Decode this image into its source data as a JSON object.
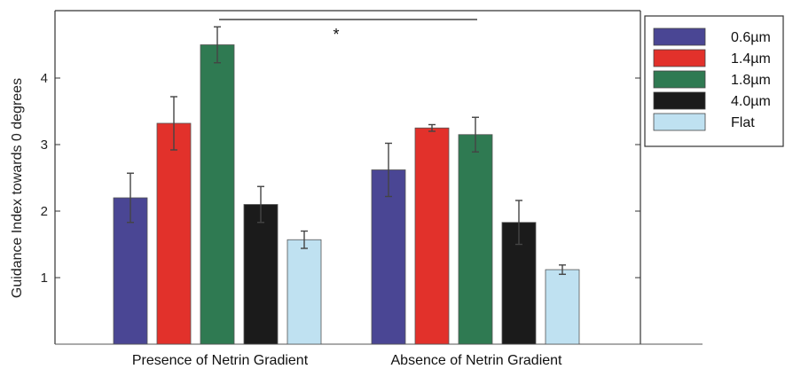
{
  "chart_data": {
    "type": "bar",
    "title": "",
    "xlabel": "",
    "ylabel": "Guidance Index towards 0 degrees",
    "ylim": [
      0,
      5
    ],
    "yticks": [
      1,
      2,
      3,
      4
    ],
    "grid": false,
    "legend_position": "top-right, outside plot",
    "categories": [
      "Presence of Netrin Gradient",
      "Absence of Netrin Gradient"
    ],
    "series": [
      {
        "name": "0.6µm",
        "color": "#4a4694",
        "values": [
          2.2,
          2.62
        ],
        "errors": [
          0.37,
          0.4
        ]
      },
      {
        "name": "1.4µm",
        "color": "#e2312b",
        "values": [
          3.32,
          3.25
        ],
        "errors": [
          0.4,
          0.05
        ]
      },
      {
        "name": "1.8µm",
        "color": "#2f7a52",
        "values": [
          4.5,
          3.15
        ],
        "errors": [
          0.27,
          0.26
        ]
      },
      {
        "name": "4.0µm",
        "color": "#1b1b1b",
        "values": [
          2.1,
          1.83
        ],
        "errors": [
          0.27,
          0.33
        ]
      },
      {
        "name": "Flat",
        "color": "#bfe1f1",
        "values": [
          1.57,
          1.12
        ],
        "errors": [
          0.13,
          0.07
        ]
      }
    ],
    "annotations": [
      {
        "text": "*",
        "type": "significance-bracket",
        "from": "Presence of Netrin Gradient / 1.8µm",
        "to": "Absence of Netrin Gradient / 1.8µm"
      }
    ]
  }
}
